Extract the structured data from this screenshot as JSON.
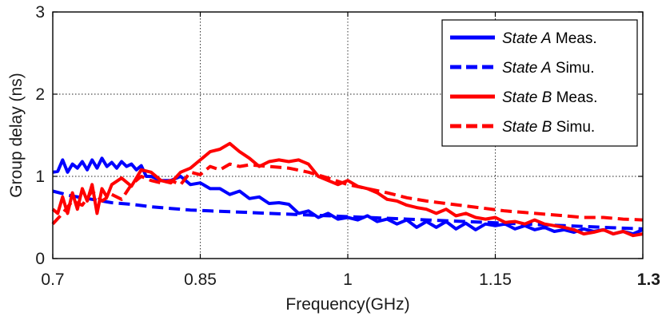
{
  "chart_data": {
    "type": "line",
    "title": "",
    "xlabel": "Frequency(GHz)",
    "ylabel": "Group delay (ns)",
    "xlim": [
      0.7,
      1.3
    ],
    "ylim": [
      0,
      3
    ],
    "x_ticks": [
      0.7,
      0.85,
      1.0,
      1.15,
      1.3
    ],
    "x_tick_labels": [
      "0.7",
      "0.85",
      "1",
      "1.15",
      "1.3"
    ],
    "y_ticks": [
      0,
      1,
      2,
      3
    ],
    "y_tick_labels": [
      "0",
      "1",
      "2",
      "3"
    ],
    "grid": true,
    "legend_position": "top-right",
    "series": [
      {
        "name": "State A Meas.",
        "legend_italic": "State A",
        "legend_rest": " Meas.",
        "color": "#0000ff",
        "dash": "solid",
        "x": [
          0.7,
          0.705,
          0.71,
          0.715,
          0.72,
          0.725,
          0.73,
          0.735,
          0.74,
          0.745,
          0.75,
          0.755,
          0.76,
          0.765,
          0.77,
          0.775,
          0.78,
          0.785,
          0.79,
          0.795,
          0.8,
          0.81,
          0.82,
          0.83,
          0.84,
          0.85,
          0.86,
          0.87,
          0.88,
          0.89,
          0.9,
          0.91,
          0.92,
          0.93,
          0.94,
          0.95,
          0.96,
          0.97,
          0.98,
          0.99,
          1.0,
          1.01,
          1.02,
          1.03,
          1.04,
          1.05,
          1.06,
          1.07,
          1.08,
          1.09,
          1.1,
          1.11,
          1.12,
          1.13,
          1.14,
          1.15,
          1.16,
          1.17,
          1.18,
          1.19,
          1.2,
          1.21,
          1.22,
          1.23,
          1.24,
          1.25,
          1.26,
          1.27,
          1.28,
          1.29,
          1.3
        ],
        "y": [
          1.05,
          1.06,
          1.2,
          1.05,
          1.15,
          1.1,
          1.18,
          1.08,
          1.2,
          1.1,
          1.22,
          1.12,
          1.17,
          1.1,
          1.18,
          1.12,
          1.15,
          1.08,
          1.13,
          1.0,
          1.0,
          0.95,
          0.95,
          1.0,
          0.9,
          0.92,
          0.85,
          0.85,
          0.78,
          0.82,
          0.73,
          0.75,
          0.67,
          0.68,
          0.66,
          0.55,
          0.58,
          0.5,
          0.55,
          0.48,
          0.5,
          0.47,
          0.52,
          0.45,
          0.48,
          0.42,
          0.47,
          0.38,
          0.45,
          0.38,
          0.45,
          0.36,
          0.43,
          0.35,
          0.42,
          0.4,
          0.42,
          0.36,
          0.4,
          0.35,
          0.38,
          0.33,
          0.35,
          0.32,
          0.36,
          0.33,
          0.35,
          0.3,
          0.33,
          0.3,
          0.35
        ]
      },
      {
        "name": "State A Simu.",
        "legend_italic": "State A",
        "legend_rest": " Simu.",
        "color": "#0000ff",
        "dash": "dashed",
        "x": [
          0.7,
          0.72,
          0.74,
          0.76,
          0.78,
          0.8,
          0.82,
          0.84,
          0.86,
          0.88,
          0.9,
          0.92,
          0.94,
          0.96,
          0.98,
          1.0,
          1.02,
          1.04,
          1.06,
          1.08,
          1.1,
          1.12,
          1.14,
          1.16,
          1.18,
          1.2,
          1.22,
          1.24,
          1.26,
          1.28,
          1.3
        ],
        "y": [
          0.82,
          0.76,
          0.72,
          0.68,
          0.66,
          0.63,
          0.61,
          0.59,
          0.58,
          0.57,
          0.56,
          0.55,
          0.54,
          0.53,
          0.52,
          0.51,
          0.5,
          0.49,
          0.48,
          0.47,
          0.46,
          0.45,
          0.44,
          0.43,
          0.42,
          0.41,
          0.4,
          0.39,
          0.38,
          0.37,
          0.36
        ]
      },
      {
        "name": "State B Meas.",
        "legend_italic": "State B",
        "legend_rest": " Meas.",
        "color": "#ff0000",
        "dash": "solid",
        "x": [
          0.7,
          0.705,
          0.71,
          0.715,
          0.72,
          0.725,
          0.73,
          0.735,
          0.74,
          0.745,
          0.75,
          0.755,
          0.76,
          0.77,
          0.78,
          0.79,
          0.8,
          0.81,
          0.82,
          0.83,
          0.84,
          0.85,
          0.86,
          0.87,
          0.88,
          0.89,
          0.9,
          0.91,
          0.92,
          0.93,
          0.94,
          0.95,
          0.96,
          0.97,
          0.98,
          0.99,
          1.0,
          1.01,
          1.02,
          1.03,
          1.04,
          1.05,
          1.06,
          1.07,
          1.08,
          1.09,
          1.1,
          1.11,
          1.12,
          1.13,
          1.14,
          1.15,
          1.16,
          1.17,
          1.18,
          1.19,
          1.2,
          1.21,
          1.22,
          1.23,
          1.24,
          1.25,
          1.26,
          1.27,
          1.28,
          1.29,
          1.3
        ],
        "y": [
          0.6,
          0.55,
          0.75,
          0.55,
          0.8,
          0.6,
          0.85,
          0.7,
          0.9,
          0.55,
          0.85,
          0.75,
          0.9,
          0.98,
          0.88,
          1.08,
          1.05,
          0.95,
          0.92,
          1.05,
          1.1,
          1.2,
          1.3,
          1.33,
          1.4,
          1.3,
          1.22,
          1.12,
          1.18,
          1.2,
          1.18,
          1.2,
          1.15,
          1.0,
          0.95,
          0.9,
          0.95,
          0.88,
          0.85,
          0.8,
          0.72,
          0.7,
          0.65,
          0.62,
          0.6,
          0.55,
          0.6,
          0.52,
          0.55,
          0.5,
          0.48,
          0.5,
          0.44,
          0.45,
          0.42,
          0.47,
          0.42,
          0.4,
          0.38,
          0.35,
          0.3,
          0.32,
          0.35,
          0.3,
          0.33,
          0.28,
          0.3
        ]
      },
      {
        "name": "State B Simu.",
        "legend_italic": "State B",
        "legend_rest": " Simu.",
        "color": "#ff0000",
        "dash": "dashed",
        "x": [
          0.7,
          0.71,
          0.72,
          0.73,
          0.74,
          0.75,
          0.76,
          0.77,
          0.78,
          0.79,
          0.8,
          0.81,
          0.82,
          0.83,
          0.84,
          0.85,
          0.86,
          0.87,
          0.88,
          0.89,
          0.9,
          0.92,
          0.94,
          0.96,
          0.98,
          1.0,
          1.02,
          1.04,
          1.06,
          1.08,
          1.1,
          1.12,
          1.14,
          1.16,
          1.18,
          1.2,
          1.22,
          1.24,
          1.26,
          1.28,
          1.3
        ],
        "y": [
          0.42,
          0.55,
          0.7,
          0.65,
          0.82,
          0.7,
          0.78,
          0.72,
          0.9,
          1.0,
          0.95,
          0.92,
          0.95,
          0.9,
          1.05,
          1.02,
          1.12,
          1.08,
          1.15,
          1.12,
          1.14,
          1.12,
          1.1,
          1.05,
          0.98,
          0.9,
          0.85,
          0.8,
          0.74,
          0.7,
          0.67,
          0.64,
          0.61,
          0.58,
          0.56,
          0.54,
          0.52,
          0.5,
          0.5,
          0.48,
          0.47
        ]
      }
    ]
  },
  "colors": {
    "state_a": "#0000ff",
    "state_b": "#ff0000",
    "axis": "#000000"
  }
}
